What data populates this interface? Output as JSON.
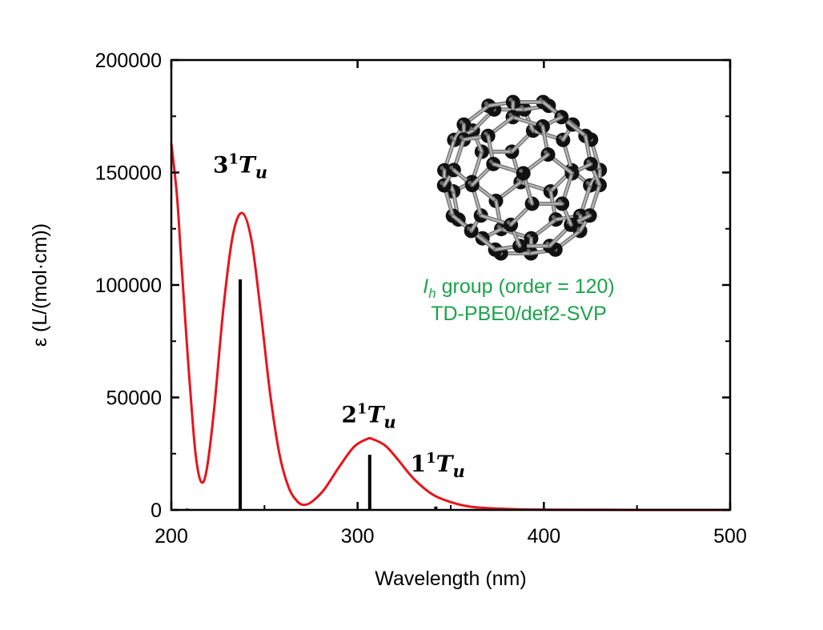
{
  "chart_data": {
    "type": "line",
    "xlabel": "Wavelength (nm)",
    "ylabel": "ε (L/(mol·cm))",
    "xlim": [
      200,
      500
    ],
    "ylim": [
      0,
      200000
    ],
    "xticks": [
      200,
      300,
      400,
      500
    ],
    "yticks": [
      0,
      50000,
      100000,
      150000,
      200000
    ],
    "grid": false,
    "series": [
      {
        "name": "spectrum",
        "color": "#e8141c",
        "x": [
          200,
          203,
          205,
          208,
          210,
          213,
          216,
          219,
          223,
          228,
          233,
          238,
          243,
          248,
          253,
          258,
          263,
          268,
          272,
          276,
          282,
          290,
          298,
          305,
          308,
          315,
          322,
          330,
          340,
          350,
          360,
          370,
          385,
          400,
          420,
          460,
          500
        ],
        "y": [
          163000,
          140000,
          115000,
          78000,
          55000,
          25000,
          12500,
          18000,
          45000,
          90000,
          122000,
          132000,
          120000,
          88000,
          52000,
          25000,
          10000,
          3500,
          2300,
          4000,
          9000,
          19000,
          28000,
          31500,
          31500,
          28500,
          22000,
          14000,
          7000,
          3500,
          1500,
          800,
          300,
          120,
          40,
          5,
          0
        ]
      },
      {
        "name": "oscillator sticks",
        "type": "stick",
        "color": "#000000",
        "x": [
          208.5,
          237,
          306.5,
          342
        ],
        "y": [
          600,
          102500,
          24500,
          1500
        ]
      }
    ],
    "annotations": [
      {
        "n": "3",
        "sup": "1",
        "T": "T",
        "sub": "u",
        "x": 237,
        "y": 150000
      },
      {
        "n": "2",
        "sup": "1",
        "T": "T",
        "sub": "u",
        "x": 306,
        "y": 39000
      },
      {
        "n": "1",
        "sup": "1",
        "T": "T",
        "sub": "u",
        "x": 343,
        "y": 17000
      }
    ],
    "info": {
      "line1_italic": "I",
      "line1_sub": "h",
      "line1_rest": " group (order = 120)",
      "line2": "TD-PBE0/def2-SVP",
      "color": "#1aa34a"
    }
  }
}
